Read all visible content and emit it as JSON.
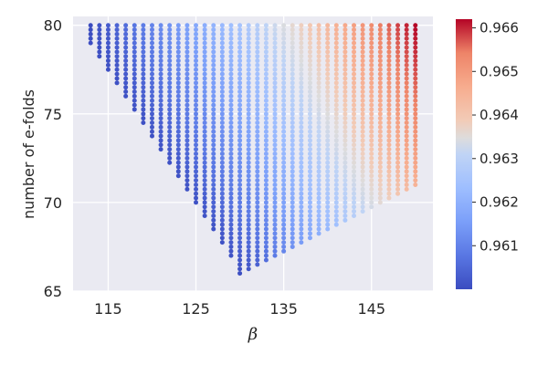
{
  "chart_data": {
    "type": "scatter",
    "title": "",
    "xlabel": "β",
    "ylabel": "number of e-folds",
    "xlim": [
      111,
      152
    ],
    "ylim": [
      65,
      80.5
    ],
    "xticks": [
      115,
      125,
      135,
      145
    ],
    "yticks": [
      65,
      70,
      75,
      80
    ],
    "grid": true,
    "background": "#eaeaf2",
    "x_range": [
      113,
      150
    ],
    "x_step": 1,
    "y_step": 0.25,
    "y_max": 80,
    "lower_boundary": {
      "description": "minimum number of e-folds vs beta (V-shaped region)",
      "points": [
        [
          113,
          78.8
        ],
        [
          130,
          66.0
        ],
        [
          150,
          71.0
        ]
      ]
    },
    "color_variable": "n_s",
    "colorbar": {
      "colormap": "coolwarm",
      "min": 0.96,
      "max": 0.9662,
      "ticks": [
        0.961,
        0.962,
        0.963,
        0.964,
        0.965,
        0.966
      ],
      "tick_labels": [
        "0.961",
        "0.962",
        "0.963",
        "0.964",
        "0.965",
        "0.966"
      ]
    },
    "color_model": {
      "description": "approximate spectral index as function of beta and e-folds",
      "samples": [
        {
          "x": 113,
          "y": 80,
          "c": 0.9602
        },
        {
          "x": 130,
          "y": 66,
          "c": 0.9602
        },
        {
          "x": 130,
          "y": 80,
          "c": 0.9627
        },
        {
          "x": 140,
          "y": 80,
          "c": 0.9643
        },
        {
          "x": 150,
          "y": 80,
          "c": 0.9662
        },
        {
          "x": 150,
          "y": 71,
          "c": 0.9645
        }
      ]
    }
  }
}
